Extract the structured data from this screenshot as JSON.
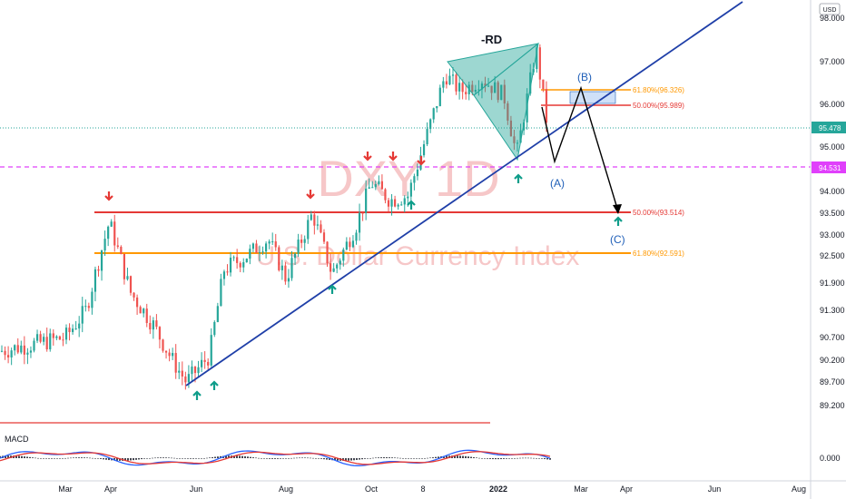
{
  "chart_data": {
    "type": "candlestick",
    "title": "DXY 1D",
    "subtitle": "U.S. Dollar Currency Index",
    "currency": "USD",
    "price_ticks": [
      "98.000",
      "97.000",
      "96.000",
      "95.000",
      "94.000",
      "93.500",
      "93.000",
      "92.500",
      "91.900",
      "91.300",
      "90.700",
      "90.200",
      "89.700",
      "89.200"
    ],
    "x_ticks": [
      "Mar",
      "Apr",
      "Jun",
      "Aug",
      "Oct",
      "8",
      "2022",
      "Mar",
      "Apr",
      "Jun",
      "Aug"
    ],
    "close_series": [
      {
        "date": "2021-03-01",
        "value": 90.7
      },
      {
        "date": "2021-03-15",
        "value": 91.3
      },
      {
        "date": "2021-03-31",
        "value": 93.3
      },
      {
        "date": "2021-04-15",
        "value": 91.7
      },
      {
        "date": "2021-05-01",
        "value": 91.0
      },
      {
        "date": "2021-05-15",
        "value": 90.2
      },
      {
        "date": "2021-05-25",
        "value": 89.7
      },
      {
        "date": "2021-06-10",
        "value": 90.3
      },
      {
        "date": "2021-06-20",
        "value": 92.2
      },
      {
        "date": "2021-07-05",
        "value": 92.5
      },
      {
        "date": "2021-07-20",
        "value": 92.9
      },
      {
        "date": "2021-08-01",
        "value": 92.0
      },
      {
        "date": "2021-08-20",
        "value": 93.5
      },
      {
        "date": "2021-09-03",
        "value": 92.1
      },
      {
        "date": "2021-09-20",
        "value": 93.2
      },
      {
        "date": "2021-10-01",
        "value": 94.2
      },
      {
        "date": "2021-10-15",
        "value": 93.8
      },
      {
        "date": "2021-10-28",
        "value": 93.9
      },
      {
        "date": "2021-11-10",
        "value": 95.2
      },
      {
        "date": "2021-11-24",
        "value": 96.7
      },
      {
        "date": "2021-12-05",
        "value": 96.3
      },
      {
        "date": "2021-12-20",
        "value": 96.6
      },
      {
        "date": "2022-01-05",
        "value": 96.2
      },
      {
        "date": "2022-01-14",
        "value": 94.8
      },
      {
        "date": "2022-01-28",
        "value": 97.3
      },
      {
        "date": "2022-02-05",
        "value": 95.5
      }
    ],
    "last_price": "95.478",
    "marked_level": "94.531",
    "fib_levels": [
      {
        "label": "61.80%(96.326)",
        "value": 96.326,
        "color": "#ff9800"
      },
      {
        "label": "50.00%(95.989)",
        "value": 95.989,
        "color": "#e53935"
      },
      {
        "label": "50.00%(93.514)",
        "value": 93.514,
        "color": "#e53935"
      },
      {
        "label": "61.80%(92.591)",
        "value": 92.591,
        "color": "#ff9800"
      }
    ],
    "annotations": {
      "pattern": "-RD",
      "wave_a": "(A)",
      "wave_b": "(B)",
      "wave_c": "(C)"
    },
    "macd": {
      "title": "MACD",
      "zero_label": "0.000"
    }
  }
}
